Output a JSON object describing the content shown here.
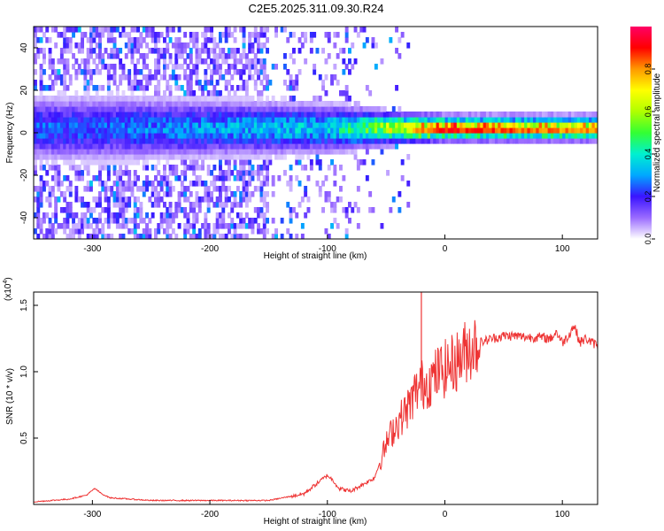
{
  "figure_title": "C2E5.2025.311.09.30.R24",
  "chart_data": [
    {
      "type": "heatmap",
      "title": "C2E5.2025.311.09.30.R24",
      "xlabel": "Height of straight line (km)",
      "ylabel": "Frequency (Hz)",
      "xlim": [
        -350,
        130
      ],
      "ylim": [
        -50,
        50
      ],
      "xticks": [
        -300,
        -200,
        -100,
        0,
        100
      ],
      "yticks": [
        -40,
        -20,
        0,
        20,
        40
      ],
      "colorbar": {
        "label": "Normalized spectral amplitude",
        "range": [
          0,
          1
        ],
        "ticks": [
          0.0,
          0.2,
          0.4,
          0.6,
          0.8
        ],
        "tick_labels": [
          "0.0",
          "0.2",
          "0.4",
          "0.6",
          "0.8"
        ],
        "colors": [
          "#ffffff",
          "#9a6bff",
          "#3a14ff",
          "#00a8ff",
          "#00f0d0",
          "#33ff33",
          "#b0ff00",
          "#ffff00",
          "#ff9900",
          "#ff0000",
          "#ff0066"
        ]
      },
      "signal_band": {
        "center_freq_hz": 1,
        "description_points": [
          {
            "x": -300,
            "width_hz": 8,
            "amplitude": 0.25
          },
          {
            "x": -100,
            "width_hz": 6,
            "amplitude": 0.35
          },
          {
            "x": -50,
            "width_hz": 4,
            "amplitude": 0.6
          },
          {
            "x": 0,
            "width_hz": 3,
            "amplitude": 0.85
          },
          {
            "x": 100,
            "width_hz": 3,
            "amplitude": 0.75
          }
        ]
      }
    },
    {
      "type": "line",
      "xlabel": "Height of straight line (km)",
      "ylabel": "SNR (10 * v/v)",
      "yscale_label": "(x10",
      "yscale_exp": "4",
      "yscale_close": ")",
      "xlim": [
        -350,
        130
      ],
      "ylim": [
        0,
        1.6
      ],
      "xticks": [
        -300,
        -200,
        -100,
        0,
        100
      ],
      "yticks": [
        0.5,
        1.0,
        1.5
      ],
      "ytick_labels": [
        "0.5",
        "1.0",
        "1.5"
      ],
      "series": [
        {
          "name": "SNR",
          "color": "#ee3333",
          "x": [
            -350,
            -320,
            -305,
            -298,
            -292,
            -285,
            -250,
            -200,
            -150,
            -120,
            -110,
            -100,
            -95,
            -90,
            -80,
            -70,
            -60,
            -50,
            -45,
            -40,
            -35,
            -30,
            -25,
            -20,
            -15,
            -10,
            -5,
            0,
            5,
            10,
            15,
            20,
            30,
            40,
            50,
            60,
            70,
            80,
            90,
            95,
            100,
            105,
            110,
            115,
            120,
            125,
            130
          ],
          "y": [
            0.02,
            0.04,
            0.07,
            0.12,
            0.08,
            0.05,
            0.03,
            0.03,
            0.03,
            0.08,
            0.15,
            0.22,
            0.18,
            0.12,
            0.1,
            0.15,
            0.2,
            0.45,
            0.55,
            0.62,
            0.68,
            0.75,
            0.85,
            0.9,
            0.92,
            0.95,
            1.0,
            1.02,
            1.05,
            1.08,
            1.12,
            1.18,
            1.22,
            1.25,
            1.27,
            1.27,
            1.26,
            1.26,
            1.25,
            1.3,
            1.22,
            1.27,
            1.35,
            1.22,
            1.25,
            1.22,
            1.2
          ]
        }
      ]
    }
  ]
}
